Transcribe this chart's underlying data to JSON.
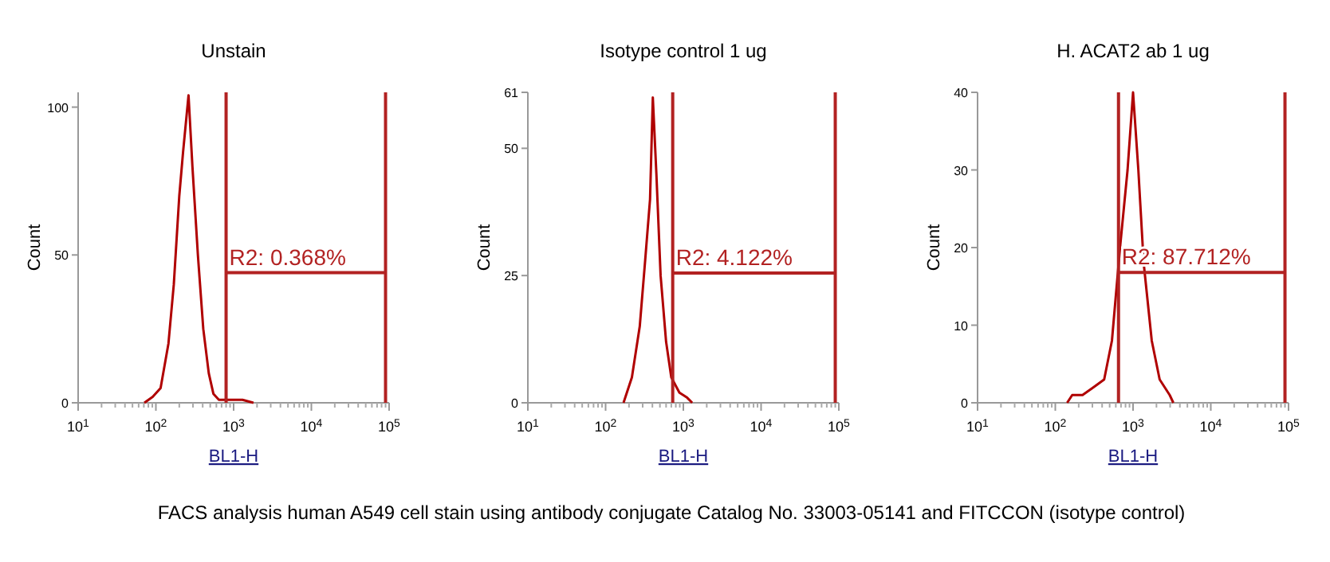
{
  "chart_data": [
    {
      "type": "line",
      "title": "Unstain",
      "xlabel": "BL1-H",
      "ylabel": "Count",
      "log": "x",
      "xlim": [
        10,
        100000
      ],
      "ylim": [
        0,
        105
      ],
      "xticks": [
        {
          "value": 10,
          "label": "10$^{1}$"
        },
        {
          "value": 100,
          "label": "10$^{2}$"
        },
        {
          "value": 1000,
          "label": "10$^{3}$"
        },
        {
          "value": 10000,
          "label": "10$^{4}$"
        },
        {
          "value": 100000,
          "label": "10$^{5}$"
        }
      ],
      "yticks": [
        0,
        50,
        100
      ],
      "series": [
        {
          "color": "#b00000",
          "x": [
            71,
            91,
            115,
            145,
            170,
            200,
            224,
            263,
            295,
            347,
            407,
            479,
            550,
            646,
            810,
            1300,
            1800
          ],
          "values": [
            0,
            2,
            5,
            20,
            40,
            70,
            85,
            104,
            80,
            50,
            25,
            10,
            3,
            1,
            1,
            1,
            0
          ]
        }
      ],
      "ref_lines": [
        {
          "axis": "x",
          "value": 800,
          "color": "#b22222"
        },
        {
          "axis": "x",
          "value": 90000,
          "color": "#b22222"
        },
        {
          "axis": "y",
          "value": 44,
          "color": "#b22222"
        }
      ],
      "annotations": [
        {
          "text": "R2: 0.368%",
          "x": 800,
          "y": 44
        },
        "FACS analysis human A549 cell stain using antibody conjugate Catalog No. 33003-05141 and FITCCON (isotype control)"
      ]
    },
    {
      "type": "line",
      "title": "Isotype control 1 ug",
      "xlabel": "BL1-H",
      "ylabel": "Count",
      "log": "x",
      "xlim": [
        10,
        100000
      ],
      "ylim": [
        0,
        61
      ],
      "xticks": [
        {
          "value": 10,
          "label": "10$^{1}$"
        },
        {
          "value": 100,
          "label": "10$^{2}$"
        },
        {
          "value": 1000,
          "label": "10$^{3}$"
        },
        {
          "value": 10000,
          "label": "10$^{4}$"
        },
        {
          "value": 100000,
          "label": "10$^{5}$"
        }
      ],
      "yticks": [
        0,
        25,
        50,
        61
      ],
      "series": [
        {
          "color": "#b00000",
          "x": [
            170,
            218,
            275,
            323,
            373,
            405,
            450,
            510,
            600,
            700,
            890,
            1120,
            1300
          ],
          "values": [
            0,
            5,
            15,
            28,
            40,
            60,
            45,
            25,
            12,
            5,
            2,
            1,
            0
          ]
        }
      ],
      "ref_lines": [
        {
          "axis": "x",
          "value": 730,
          "color": "#b22222"
        },
        {
          "axis": "x",
          "value": 90000,
          "color": "#b22222"
        },
        {
          "axis": "y",
          "value": 25.5,
          "color": "#b22222"
        }
      ],
      "annotations": [
        {
          "text": "R2: 4.122%",
          "x": 730,
          "y": 25.5
        }
      ]
    },
    {
      "type": "line",
      "title": "H. ACAT2 ab 1 ug",
      "xlabel": "BL1-H",
      "ylabel": "Count",
      "log": "x",
      "xlim": [
        10,
        100000
      ],
      "ylim": [
        0,
        40
      ],
      "xticks": [
        {
          "value": 10,
          "label": "10$^{1}$"
        },
        {
          "value": 100,
          "label": "10$^{2}$"
        },
        {
          "value": 1000,
          "label": "10$^{3}$"
        },
        {
          "value": 10000,
          "label": "10$^{4}$"
        },
        {
          "value": 100000,
          "label": "10$^{5}$"
        }
      ],
      "yticks": [
        0,
        10,
        20,
        30,
        40
      ],
      "series": [
        {
          "color": "#b00000",
          "x": [
            142,
            165,
            224,
            310,
            425,
            535,
            680,
            850,
            1000,
            1170,
            1370,
            1740,
            2200,
            2960,
            3300
          ],
          "values": [
            0,
            1,
            1,
            2,
            3,
            8,
            20,
            30,
            40,
            30,
            18,
            8,
            3,
            1,
            0
          ]
        }
      ],
      "ref_lines": [
        {
          "axis": "x",
          "value": 650,
          "color": "#b22222"
        },
        {
          "axis": "x",
          "value": 90000,
          "color": "#b22222"
        },
        {
          "axis": "y",
          "value": 16.8,
          "color": "#b22222"
        }
      ],
      "annotations": [
        {
          "text": "R2: 87.712%",
          "x": 650,
          "y": 16.8
        }
      ]
    }
  ]
}
